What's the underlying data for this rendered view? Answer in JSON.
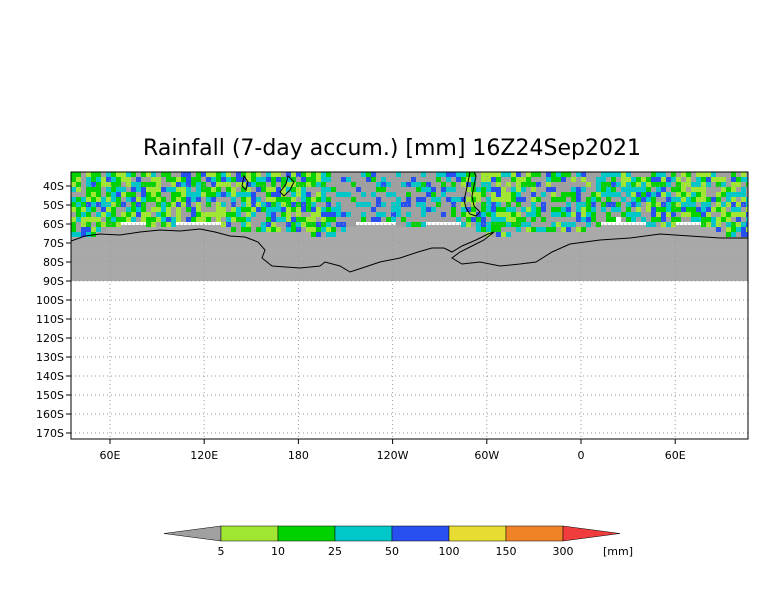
{
  "title": "Rainfall (7-day accum.) [mm] 16Z24Sep2021",
  "lat_labels": [
    "40S",
    "50S",
    "60S",
    "70S",
    "80S",
    "90S",
    "100S",
    "110S",
    "120S",
    "130S",
    "140S",
    "150S",
    "160S",
    "170S"
  ],
  "lon_labels": [
    "60E",
    "120E",
    "180",
    "120W",
    "60W",
    "0",
    "60E"
  ],
  "colorbar": {
    "unit": "[mm]",
    "ticks": [
      "5",
      "10",
      "25",
      "50",
      "100",
      "150",
      "300"
    ],
    "colors": [
      "#a0a0a0",
      "#a0e632",
      "#00d200",
      "#00c8c8",
      "#2850f0",
      "#e6dc32",
      "#f08228",
      "#f03c3c"
    ]
  },
  "colors": {
    "no_data_gray": "#a9a9a9",
    "grid": "#9a9a9a",
    "coast": "#000000"
  }
}
